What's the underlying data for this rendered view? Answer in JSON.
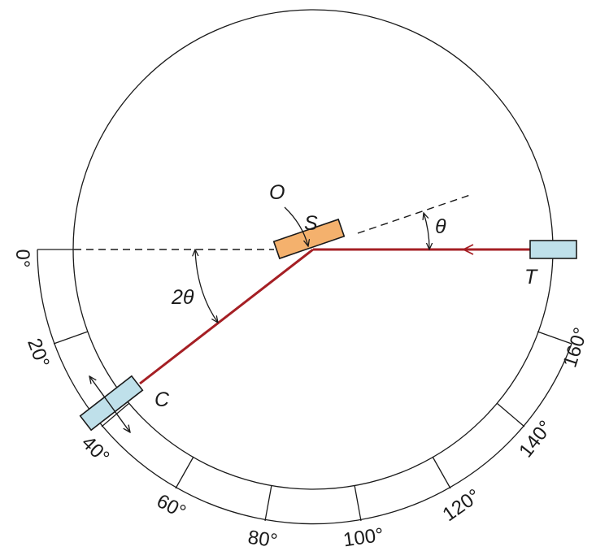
{
  "labels": {
    "point_o": "O",
    "specimen": "S",
    "theta": "θ",
    "two_theta": "2θ",
    "source": "T",
    "counter": "C"
  },
  "scale": {
    "degree_labels": [
      "0°",
      "20°",
      "40°",
      "60°",
      "80°",
      "100°",
      "120°",
      "140°",
      "160°"
    ]
  },
  "colors": {
    "beam": "#a51f24",
    "specimen_fill": "#f4b16d",
    "housing_fill": "#bfe0ea",
    "stroke": "#1a1a1a"
  }
}
